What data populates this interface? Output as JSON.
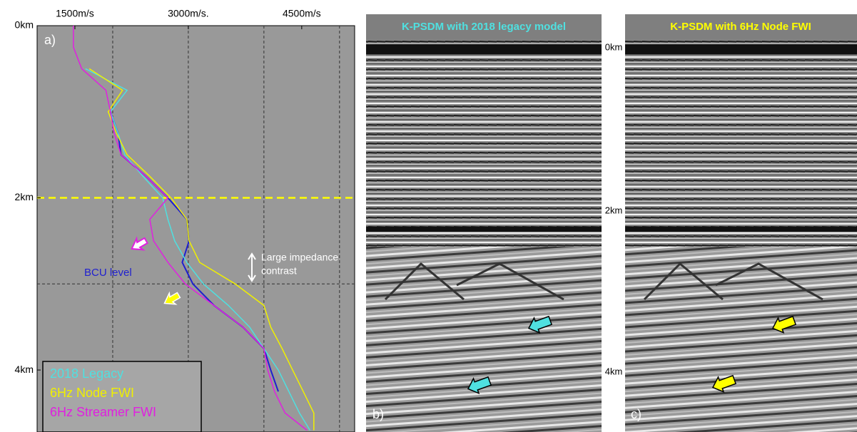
{
  "chart_data": {
    "type": "line",
    "label": "a)",
    "y_inverted": true,
    "xlim": [
      1000,
      5200
    ],
    "xticks": [
      {
        "value": 1500,
        "label": "1500m/s"
      },
      {
        "value": 3000,
        "label": "3000m/s."
      },
      {
        "value": 4500,
        "label": "4500m/s"
      }
    ],
    "xgrid": [
      2000,
      3000,
      4000,
      5000
    ],
    "ylim": [
      0,
      4.72
    ],
    "yticks": [
      {
        "value": 0,
        "label": "0km"
      },
      {
        "value": 2,
        "label": "2km"
      },
      {
        "value": 4,
        "label": "4km"
      }
    ],
    "ygrid": [
      3
    ],
    "marker_depth": {
      "value": 2,
      "color": "#ffff00"
    },
    "depth": [
      0,
      0.25,
      0.5,
      0.75,
      1,
      1.25,
      1.5,
      1.75,
      2,
      2.25,
      2.5,
      2.75,
      3,
      3.25,
      3.5,
      3.75,
      4,
      4.25,
      4.5,
      4.7
    ],
    "series": [
      {
        "color": "#1f1fd0",
        "values": [
          null,
          null,
          null,
          null,
          1970,
          2070,
          2110,
          2440,
          2730,
          2980,
          3010,
          2920,
          3060,
          3340,
          3720,
          4000,
          4090,
          4190,
          null,
          null
        ]
      },
      {
        "name": "2018 Legacy",
        "color": "#4fe0e0",
        "values": [
          null,
          null,
          1640,
          2190,
          1970,
          2070,
          2160,
          2400,
          2660,
          2730,
          2820,
          2980,
          3200,
          3530,
          3810,
          4000,
          4190,
          4330,
          4470,
          4610
        ]
      },
      {
        "name": "6Hz Node FWI",
        "color": "#f0f000",
        "values": [
          null,
          null,
          1690,
          2130,
          1940,
          2050,
          2190,
          2490,
          2770,
          2980,
          3010,
          3150,
          3620,
          4000,
          4090,
          4240,
          4380,
          4520,
          4660,
          4660
        ]
      },
      {
        "name": "6Hz Streamer FWI",
        "color": "#e020e0",
        "values": [
          1480,
          1480,
          1590,
          1910,
          1970,
          2020,
          2110,
          2440,
          2730,
          2490,
          2540,
          2730,
          2960,
          3340,
          3720,
          4000,
          4050,
          4140,
          4280,
          4570
        ]
      }
    ],
    "annotations": [
      {
        "text": "BCU level",
        "color": "#1f1fd0"
      },
      {
        "lines": [
          "Large impedance",
          "contrast"
        ],
        "color": "#ffffff"
      }
    ]
  },
  "seismic": {
    "panels": [
      {
        "title": "K-PSDM with 2018 legacy model",
        "title_color": "#4fe0e0",
        "label": "b)"
      },
      {
        "title": "K-PSDM with 6Hz Node FWI",
        "title_color": "#ffff00",
        "label": "c)"
      }
    ],
    "depth_labels": [
      "0km",
      "2km",
      "4km"
    ]
  }
}
